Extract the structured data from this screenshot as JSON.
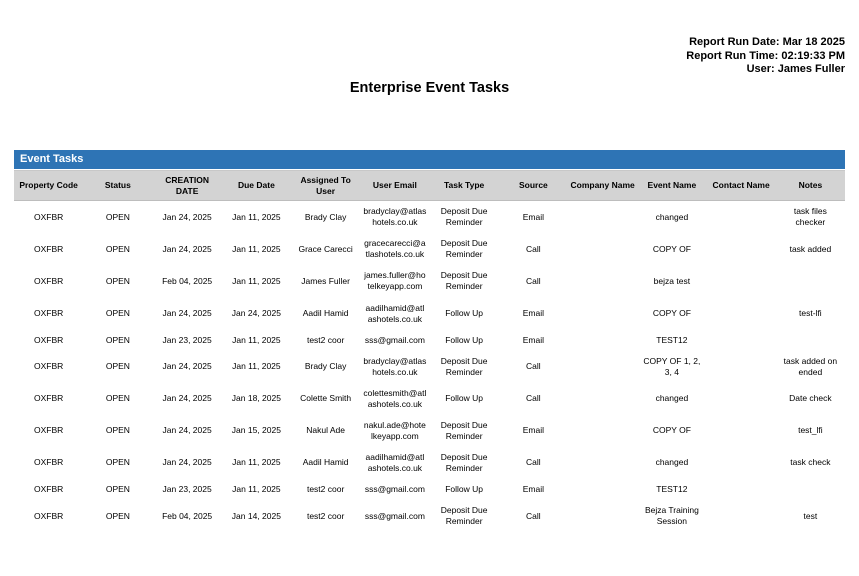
{
  "colors": {
    "band_blue": "#2E74B5",
    "header_gray": "#D3D3D3"
  },
  "report_meta": {
    "run_date": "Report Run Date: Mar 18 2025",
    "run_time": "Report Run Time: 02:19:33 PM",
    "user": "User: James Fuller"
  },
  "title": "Enterprise Event Tasks",
  "table": {
    "section_title": "Event Tasks",
    "columns": [
      "Property Code",
      "Status",
      "CREATION DATE",
      "Due Date",
      "Assigned To User",
      "User Email",
      "Task Type",
      "Source",
      "Company Name",
      "Event Name",
      "Contact Name",
      "Notes"
    ],
    "rows": [
      [
        "OXFBR",
        "OPEN",
        "Jan 24, 2025",
        "Jan 11, 2025",
        "Brady Clay",
        "bradyclay@atlashotels.co.uk",
        "Deposit Due Reminder",
        "Email",
        "",
        "changed",
        "",
        "task files checker"
      ],
      [
        "OXFBR",
        "OPEN",
        "Jan 24, 2025",
        "Jan 11, 2025",
        "Grace Carecci",
        "gracecarecci@atlashotels.co.uk",
        "Deposit Due Reminder",
        "Call",
        "",
        "COPY OF",
        "",
        "task added"
      ],
      [
        "OXFBR",
        "OPEN",
        "Feb 04, 2025",
        "Jan 11, 2025",
        "James Fuller",
        "james.fuller@hotelkeyapp.com",
        "Deposit Due Reminder",
        "Call",
        "",
        "bejza test",
        "",
        ""
      ],
      [
        "OXFBR",
        "OPEN",
        "Jan 24, 2025",
        "Jan 24, 2025",
        "Aadil Hamid",
        "aadilhamid@atlashotels.co.uk",
        "Follow Up",
        "Email",
        "",
        "COPY OF",
        "",
        "test-lfi"
      ],
      [
        "OXFBR",
        "OPEN",
        "Jan 23, 2025",
        "Jan 11, 2025",
        "test2 coor",
        "sss@gmail.com",
        "Follow Up",
        "Email",
        "",
        "TEST12",
        "",
        ""
      ],
      [
        "OXFBR",
        "OPEN",
        "Jan 24, 2025",
        "Jan 11, 2025",
        "Brady Clay",
        "bradyclay@atlashotels.co.uk",
        "Deposit Due Reminder",
        "Call",
        "",
        "COPY OF 1, 2, 3, 4",
        "",
        "task added on ended"
      ],
      [
        "OXFBR",
        "OPEN",
        "Jan 24, 2025",
        "Jan 18, 2025",
        "Colette Smith",
        "colettesmith@atlashotels.co.uk",
        "Follow Up",
        "Call",
        "",
        "changed",
        "",
        "Date check"
      ],
      [
        "OXFBR",
        "OPEN",
        "Jan 24, 2025",
        "Jan 15, 2025",
        "Nakul Ade",
        "nakul.ade@hotelkeyapp.com",
        "Deposit Due Reminder",
        "Email",
        "",
        "COPY OF",
        "",
        "test_lfi"
      ],
      [
        "OXFBR",
        "OPEN",
        "Jan 24, 2025",
        "Jan 11, 2025",
        "Aadil Hamid",
        "aadilhamid@atlashotels.co.uk",
        "Deposit Due Reminder",
        "Call",
        "",
        "changed",
        "",
        "task check"
      ],
      [
        "OXFBR",
        "OPEN",
        "Jan 23, 2025",
        "Jan 11, 2025",
        "test2 coor",
        "sss@gmail.com",
        "Follow Up",
        "Email",
        "",
        "TEST12",
        "",
        ""
      ],
      [
        "OXFBR",
        "OPEN",
        "Feb 04, 2025",
        "Jan 14, 2025",
        "test2 coor",
        "sss@gmail.com",
        "Deposit Due Reminder",
        "Call",
        "",
        "Bejza Training Session",
        "",
        "test"
      ]
    ]
  }
}
